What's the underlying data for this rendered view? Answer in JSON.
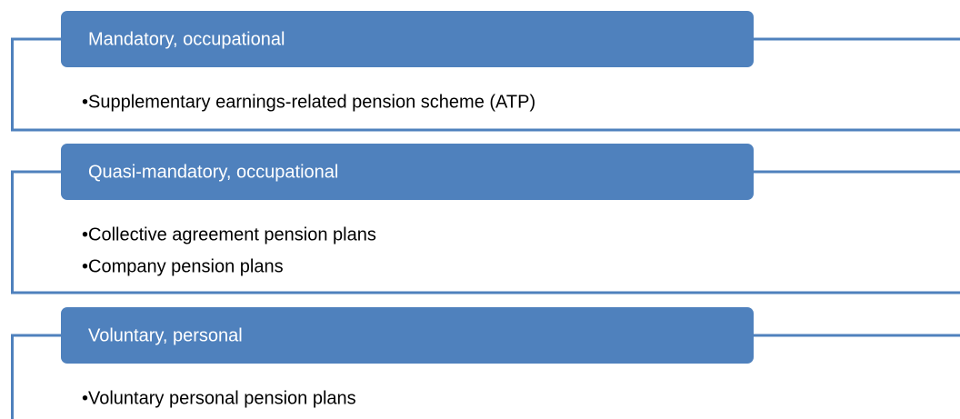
{
  "groups": [
    {
      "title": "Mandatory, occupational",
      "items": [
        "•Supplementary earnings-related pension scheme (ATP)"
      ]
    },
    {
      "title": "Quasi-mandatory, occupational",
      "items": [
        "•Collective agreement pension plans",
        "•Company pension plans"
      ]
    },
    {
      "title": "Voluntary, personal",
      "items": [
        "•Voluntary personal pension plans"
      ]
    }
  ]
}
